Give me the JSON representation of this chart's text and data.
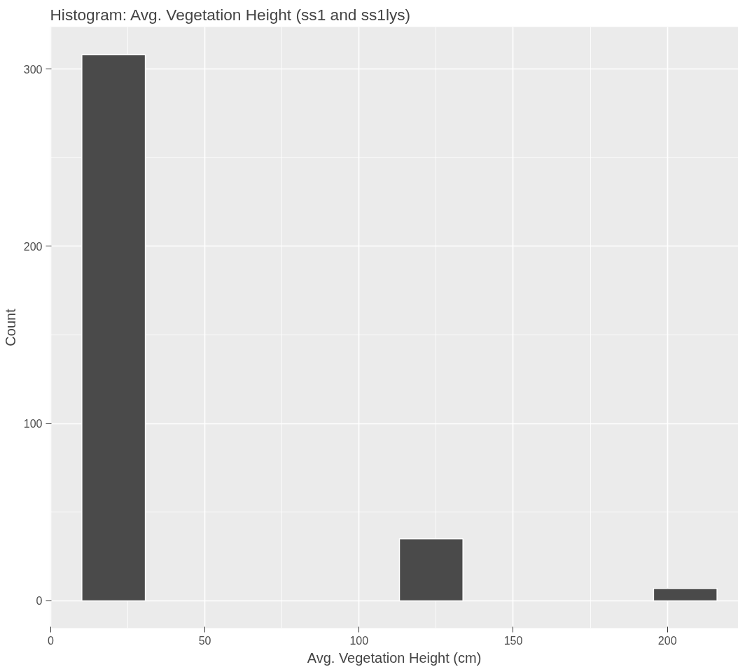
{
  "chart_data": {
    "type": "histogram",
    "title": "Histogram: Avg. Vegetation Height (ss1 and ss1lys)",
    "xlabel": "Avg. Vegetation Height (cm)",
    "ylabel": "Count",
    "bins": [
      10.1,
      30.7,
      51.3,
      71.9,
      92.5,
      113.1,
      133.7,
      154.3,
      174.9,
      195.5,
      216.1
    ],
    "values": [
      308,
      0,
      0,
      0,
      0,
      35,
      0,
      0,
      0,
      7
    ],
    "color": "#4a4a4a",
    "xlim": [
      -0.2,
      223
    ],
    "ylim": [
      -15.4,
      323.7
    ],
    "xticks": [
      0,
      50,
      100,
      150,
      200
    ],
    "yticks": [
      0,
      100,
      200,
      300
    ],
    "grid": true
  }
}
